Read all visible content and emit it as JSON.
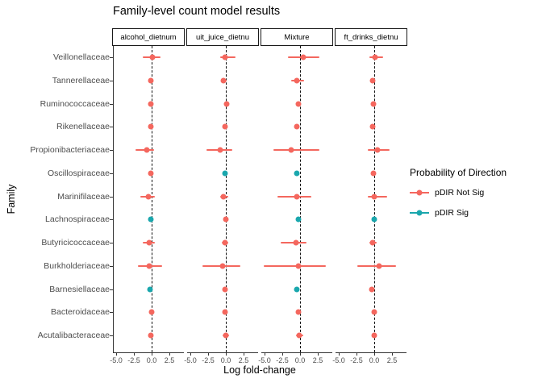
{
  "title": "Family-level count model results",
  "axes": {
    "x_label": "Log fold-change",
    "y_label": "Family",
    "x_tick_labels": [
      "-5.0",
      "-2.5",
      "0.0",
      "2.5"
    ]
  },
  "legend": {
    "title": "Probability of Direction",
    "items": [
      {
        "label": "pDIR Not Sig",
        "color": "#F4675E"
      },
      {
        "label": "pDIR Sig",
        "color": "#1AA7AD"
      }
    ]
  },
  "colors": {
    "not_sig": "#F4675E",
    "sig": "#1AA7AD",
    "axis": "#333333",
    "tick_text": "#4D4D4D"
  },
  "chart_data": {
    "type": "scatter",
    "subtype": "pointrange-forest-faceted",
    "title": "Family-level count model results",
    "xlabel": "Log fold-change",
    "ylabel": "Family",
    "x_ticks": [
      -5.0,
      -2.5,
      0.0,
      2.5
    ],
    "xlim": [
      -5.45,
      4.55
    ],
    "zero_line": 0,
    "grid": false,
    "legend_title": "Probability of Direction",
    "legend_items": [
      "pDIR Not Sig",
      "pDIR Sig"
    ],
    "legend_position": "right",
    "categories": [
      "Veillonellaceae",
      "Tannerellaceae",
      "Ruminococcaceae",
      "Rikenellaceae",
      "Propionibacteriaceae",
      "Oscillospiraceae",
      "Marinifilaceae",
      "Lachnospiraceae",
      "Butyricicoccaceae",
      "Burkholderiaceae",
      "Barnesiellaceae",
      "Bacteroidaceae",
      "Acutalibacteraceae"
    ],
    "facets": [
      {
        "label": "alcohol_dietnum",
        "points": [
          {
            "est": 0.1,
            "lo": -1.2,
            "hi": 1.3,
            "sig": false
          },
          {
            "est": -0.1,
            "lo": -0.4,
            "hi": 0.2,
            "sig": false
          },
          {
            "est": -0.1,
            "lo": -0.3,
            "hi": 0.1,
            "sig": false
          },
          {
            "est": -0.15,
            "lo": -0.4,
            "hi": 0.1,
            "sig": false
          },
          {
            "est": -0.65,
            "lo": -2.3,
            "hi": 0.3,
            "sig": false
          },
          {
            "est": -0.15,
            "lo": -0.35,
            "hi": 0.05,
            "sig": false
          },
          {
            "est": -0.4,
            "lo": -1.6,
            "hi": 0.5,
            "sig": false
          },
          {
            "est": -0.1,
            "lo": -0.3,
            "hi": 0.1,
            "sig": true
          },
          {
            "est": -0.3,
            "lo": -1.2,
            "hi": 0.5,
            "sig": false
          },
          {
            "est": -0.35,
            "lo": -1.9,
            "hi": 1.5,
            "sig": false
          },
          {
            "est": -0.2,
            "lo": -0.45,
            "hi": 0.05,
            "sig": true
          },
          {
            "est": 0.0,
            "lo": -0.25,
            "hi": 0.25,
            "sig": false
          },
          {
            "est": -0.1,
            "lo": -0.4,
            "hi": 0.2,
            "sig": false
          }
        ]
      },
      {
        "label": "uit_juice_dietnu",
        "points": [
          {
            "est": -0.1,
            "lo": -0.8,
            "hi": 1.4,
            "sig": false
          },
          {
            "est": -0.3,
            "lo": -0.6,
            "hi": 0.1,
            "sig": false
          },
          {
            "est": 0.1,
            "lo": -0.1,
            "hi": 0.3,
            "sig": false
          },
          {
            "est": -0.1,
            "lo": -0.35,
            "hi": 0.15,
            "sig": false
          },
          {
            "est": -0.85,
            "lo": -2.7,
            "hi": 0.9,
            "sig": false
          },
          {
            "est": -0.1,
            "lo": -0.3,
            "hi": 0.1,
            "sig": true
          },
          {
            "est": -0.3,
            "lo": -0.8,
            "hi": 0.3,
            "sig": false
          },
          {
            "est": 0.0,
            "lo": -0.2,
            "hi": 0.2,
            "sig": false
          },
          {
            "est": -0.1,
            "lo": -0.6,
            "hi": 0.3,
            "sig": false
          },
          {
            "est": -0.4,
            "lo": -3.3,
            "hi": 2.0,
            "sig": false
          },
          {
            "est": -0.1,
            "lo": -0.35,
            "hi": 0.15,
            "sig": false
          },
          {
            "est": -0.1,
            "lo": -0.3,
            "hi": 0.1,
            "sig": false
          },
          {
            "est": 0.0,
            "lo": -0.45,
            "hi": 0.45,
            "sig": false
          }
        ]
      },
      {
        "label": "Mixture",
        "points": [
          {
            "est": 0.4,
            "lo": -1.7,
            "hi": 2.7,
            "sig": false
          },
          {
            "est": -0.4,
            "lo": -1.3,
            "hi": 0.6,
            "sig": false
          },
          {
            "est": -0.2,
            "lo": -0.5,
            "hi": 0.1,
            "sig": false
          },
          {
            "est": -0.5,
            "lo": -0.8,
            "hi": -0.2,
            "sig": false
          },
          {
            "est": -1.3,
            "lo": -3.7,
            "hi": 2.7,
            "sig": false
          },
          {
            "est": -0.4,
            "lo": -0.6,
            "hi": -0.1,
            "sig": true
          },
          {
            "est": -0.5,
            "lo": -3.2,
            "hi": 1.6,
            "sig": false
          },
          {
            "est": -0.25,
            "lo": -0.5,
            "hi": 0.0,
            "sig": true
          },
          {
            "est": -0.6,
            "lo": -2.7,
            "hi": 0.9,
            "sig": false
          },
          {
            "est": -0.2,
            "lo": -5.1,
            "hi": 3.6,
            "sig": false
          },
          {
            "est": -0.5,
            "lo": -0.8,
            "hi": -0.2,
            "sig": true
          },
          {
            "est": -0.2,
            "lo": -0.45,
            "hi": 0.1,
            "sig": false
          },
          {
            "est": -0.1,
            "lo": -0.6,
            "hi": 0.4,
            "sig": false
          }
        ]
      },
      {
        "label": "ft_drinks_dietnu",
        "points": [
          {
            "est": 0.1,
            "lo": -0.7,
            "hi": 1.3,
            "sig": false
          },
          {
            "est": -0.2,
            "lo": -0.5,
            "hi": 0.1,
            "sig": false
          },
          {
            "est": -0.1,
            "lo": -0.3,
            "hi": 0.15,
            "sig": false
          },
          {
            "est": -0.2,
            "lo": -0.45,
            "hi": 0.1,
            "sig": false
          },
          {
            "est": 0.5,
            "lo": -0.9,
            "hi": 2.2,
            "sig": false
          },
          {
            "est": -0.1,
            "lo": -0.3,
            "hi": 0.1,
            "sig": false
          },
          {
            "est": 0.0,
            "lo": -0.9,
            "hi": 1.8,
            "sig": false
          },
          {
            "est": 0.0,
            "lo": -0.2,
            "hi": 0.2,
            "sig": true
          },
          {
            "est": -0.2,
            "lo": -0.7,
            "hi": 0.3,
            "sig": false
          },
          {
            "est": 0.7,
            "lo": -2.4,
            "hi": 3.1,
            "sig": false
          },
          {
            "est": -0.3,
            "lo": -0.55,
            "hi": 0.0,
            "sig": false
          },
          {
            "est": -0.05,
            "lo": -0.3,
            "hi": 0.2,
            "sig": false
          },
          {
            "est": 0.05,
            "lo": -0.25,
            "hi": 0.35,
            "sig": false
          }
        ]
      }
    ]
  }
}
